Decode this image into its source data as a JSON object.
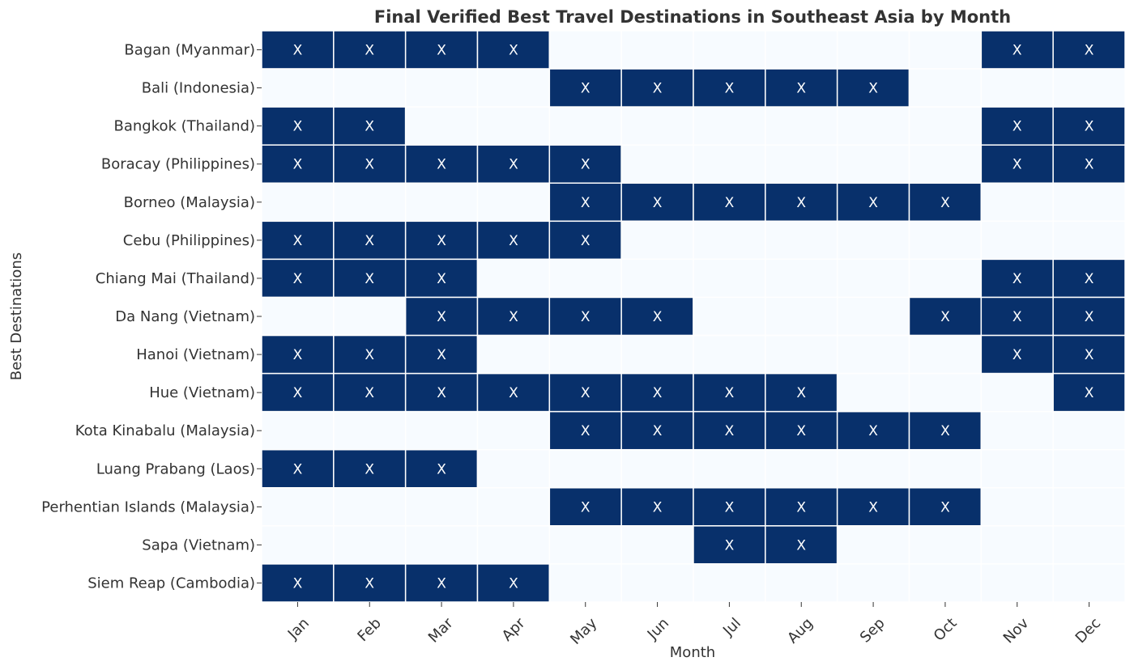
{
  "chart_data": {
    "type": "heatmap",
    "title": "Final Verified Best Travel Destinations in Southeast Asia by Month",
    "xlabel": "Month",
    "ylabel": "Best Destinations",
    "marker": "X",
    "colors": {
      "on": "#08306b",
      "off": "#f7fbff",
      "grid": "#ffffff",
      "marker": "#ffffff"
    },
    "grid": true,
    "x": [
      "Jan",
      "Feb",
      "Mar",
      "Apr",
      "May",
      "Jun",
      "Jul",
      "Aug",
      "Sep",
      "Oct",
      "Nov",
      "Dec"
    ],
    "y": [
      "Bagan (Myanmar)",
      "Bali (Indonesia)",
      "Bangkok (Thailand)",
      "Boracay (Philippines)",
      "Borneo (Malaysia)",
      "Cebu (Philippines)",
      "Chiang Mai (Thailand)",
      "Da Nang (Vietnam)",
      "Hanoi (Vietnam)",
      "Hue (Vietnam)",
      "Kota Kinabalu (Malaysia)",
      "Luang Prabang (Laos)",
      "Perhentian Islands (Malaysia)",
      "Sapa (Vietnam)",
      "Siem Reap (Cambodia)"
    ],
    "values": [
      [
        1,
        1,
        1,
        1,
        0,
        0,
        0,
        0,
        0,
        0,
        1,
        1
      ],
      [
        0,
        0,
        0,
        0,
        1,
        1,
        1,
        1,
        1,
        0,
        0,
        0
      ],
      [
        1,
        1,
        0,
        0,
        0,
        0,
        0,
        0,
        0,
        0,
        1,
        1
      ],
      [
        1,
        1,
        1,
        1,
        1,
        0,
        0,
        0,
        0,
        0,
        1,
        1
      ],
      [
        0,
        0,
        0,
        0,
        1,
        1,
        1,
        1,
        1,
        1,
        0,
        0
      ],
      [
        1,
        1,
        1,
        1,
        1,
        0,
        0,
        0,
        0,
        0,
        0,
        0
      ],
      [
        1,
        1,
        1,
        0,
        0,
        0,
        0,
        0,
        0,
        0,
        1,
        1
      ],
      [
        0,
        0,
        1,
        1,
        1,
        1,
        0,
        0,
        0,
        1,
        1,
        1
      ],
      [
        1,
        1,
        1,
        0,
        0,
        0,
        0,
        0,
        0,
        0,
        1,
        1
      ],
      [
        1,
        1,
        1,
        1,
        1,
        1,
        1,
        1,
        0,
        0,
        0,
        1
      ],
      [
        0,
        0,
        0,
        0,
        1,
        1,
        1,
        1,
        1,
        1,
        0,
        0
      ],
      [
        1,
        1,
        1,
        0,
        0,
        0,
        0,
        0,
        0,
        0,
        0,
        0
      ],
      [
        0,
        0,
        0,
        0,
        1,
        1,
        1,
        1,
        1,
        1,
        0,
        0
      ],
      [
        0,
        0,
        0,
        0,
        0,
        0,
        1,
        1,
        0,
        0,
        0,
        0
      ],
      [
        1,
        1,
        1,
        1,
        0,
        0,
        0,
        0,
        0,
        0,
        0,
        0
      ]
    ]
  }
}
